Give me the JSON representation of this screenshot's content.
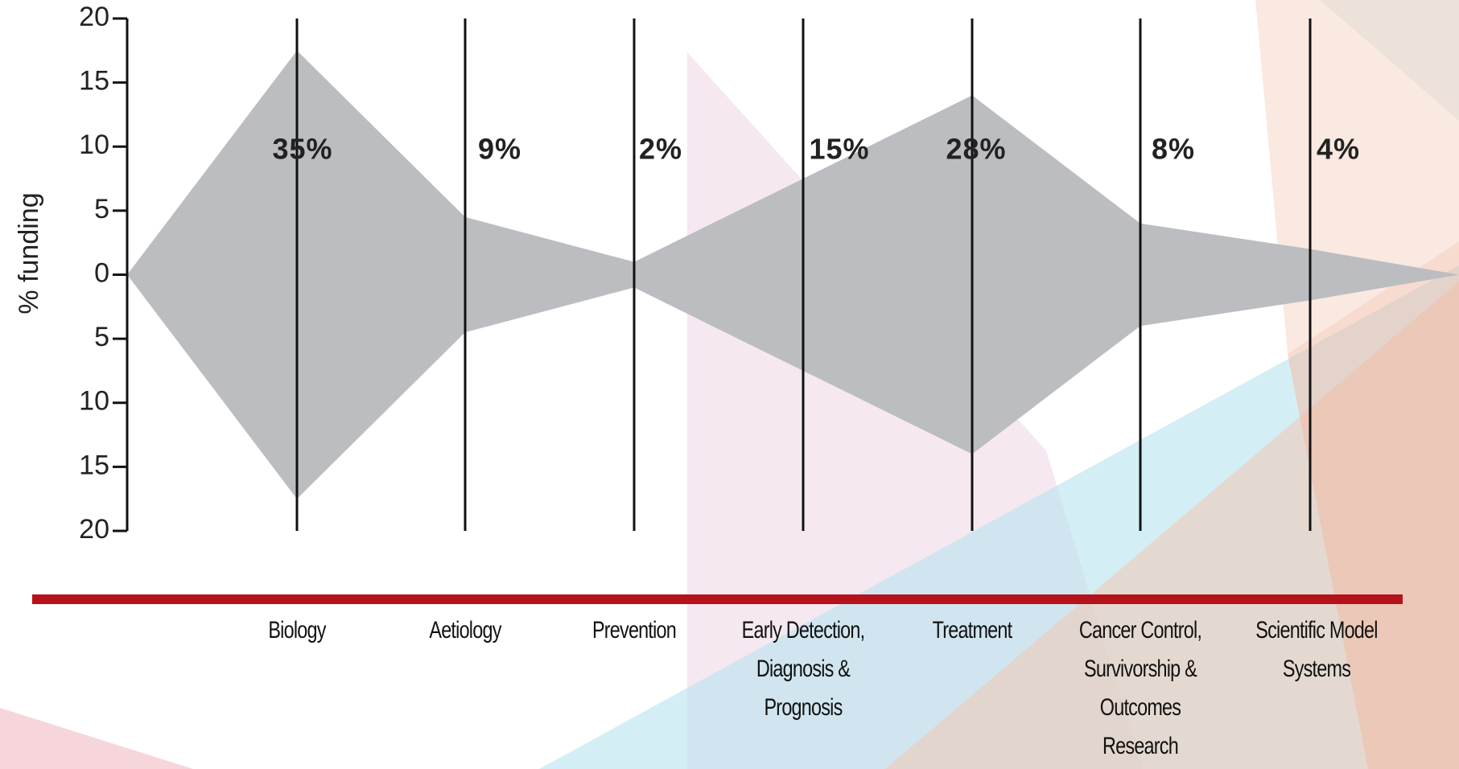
{
  "chart_data": {
    "type": "violin-area",
    "y_label": "% funding",
    "categories": [
      "Biology",
      "Aetiology",
      "Prevention",
      "Early Detection, Diagnosis & Prognosis",
      "Treatment",
      "Cancer Control, Survivorship & Outcomes Research",
      "Scientific Model Systems"
    ],
    "values": [
      35,
      9,
      2,
      15,
      28,
      8,
      4
    ],
    "value_labels": [
      "35%",
      "9%",
      "2%",
      "15%",
      "28%",
      "8%",
      "4%"
    ],
    "color": "#bcbdc0",
    "ylim": [
      -20,
      20
    ],
    "yticks": [
      20,
      15,
      10,
      5,
      0,
      {
        "value": -5,
        "label": "5"
      },
      {
        "value": -10,
        "label": "10"
      },
      {
        "value": -15,
        "label": "15"
      },
      {
        "value": -20,
        "label": "20"
      }
    ]
  }
}
